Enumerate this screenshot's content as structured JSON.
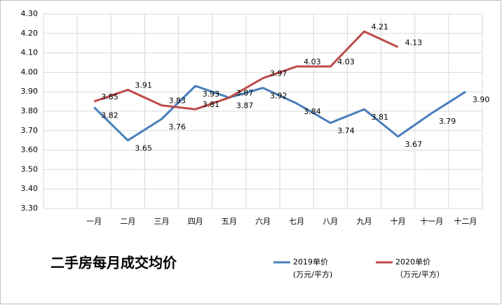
{
  "chart_data": {
    "type": "line",
    "title": "二手房每月成交均价",
    "categories": [
      null,
      "一月",
      "二月",
      "三月",
      "四月",
      "五月",
      "六月",
      "七月",
      "八月",
      "九月",
      "十月",
      "十一月",
      "十二月"
    ],
    "series": [
      {
        "name": "2019单价",
        "unit": "(万元/平方)",
        "color": "#4a7ebb",
        "values": [
          null,
          3.82,
          3.65,
          3.76,
          3.93,
          3.87,
          3.92,
          3.84,
          3.74,
          3.81,
          3.67,
          3.79,
          3.9
        ],
        "value_labels": [
          null,
          "3.82",
          "3.65",
          "3.76",
          "3.93",
          "3.87",
          "3.92",
          "3.84",
          "3.74",
          "3.81",
          "3.67",
          "3.79",
          "3.90"
        ]
      },
      {
        "name": "2020单价",
        "unit": "（万元/平方）",
        "color": "#be4b48",
        "values": [
          null,
          3.85,
          3.91,
          3.83,
          3.81,
          3.87,
          3.97,
          4.03,
          4.03,
          4.21,
          4.13,
          null,
          null
        ],
        "value_labels": [
          null,
          "3.85",
          "3.91",
          "3.83",
          "3.81",
          "3.87",
          "3.97",
          "4.03",
          "4.03",
          "4.21",
          "4.13",
          null,
          null
        ]
      }
    ],
    "ylim": [
      3.3,
      4.3
    ],
    "yticks": [
      {
        "value": 3.3,
        "label": "3.30"
      },
      {
        "value": 3.4,
        "label": "3.40"
      },
      {
        "value": 3.5,
        "label": "3.50"
      },
      {
        "value": 3.6,
        "label": "3.60"
      },
      {
        "value": 3.7,
        "label": "3.70"
      },
      {
        "value": 3.8,
        "label": "3.80"
      },
      {
        "value": 3.9,
        "label": "3.90"
      },
      {
        "value": 4.0,
        "label": "4.00"
      },
      {
        "value": 4.1,
        "label": "4.10"
      },
      {
        "value": 4.2,
        "label": "4.20"
      },
      {
        "value": 4.3,
        "label": "4.30"
      }
    ],
    "grid": true
  }
}
